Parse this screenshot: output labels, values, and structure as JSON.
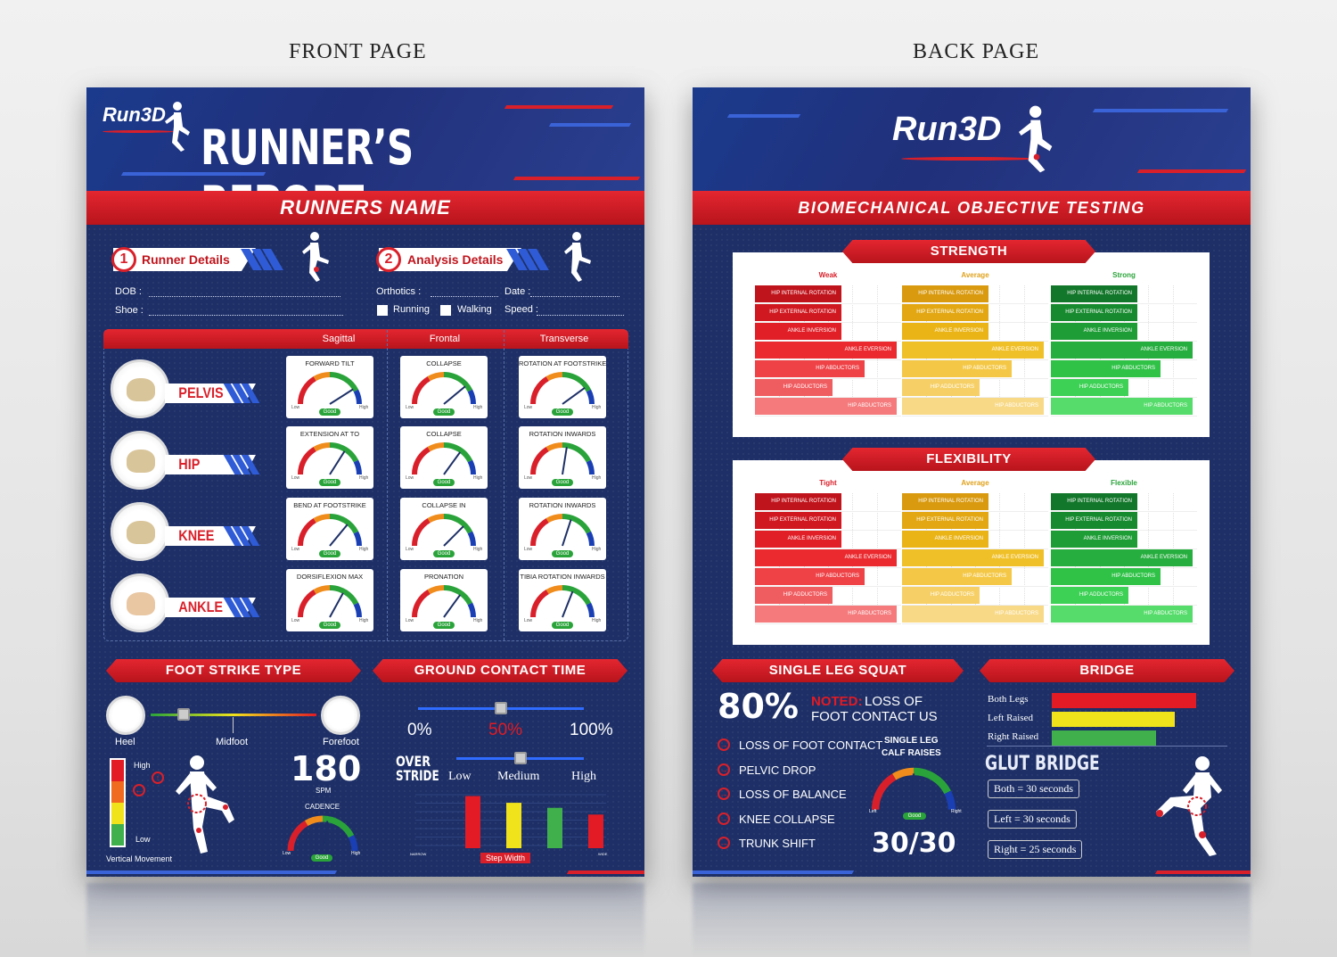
{
  "captions": {
    "front": "FRONT PAGE",
    "back": "BACK PAGE"
  },
  "front": {
    "logo": "Run3D",
    "title": "RUNNER’S REPORT",
    "banner": "RUNNERS NAME",
    "runner_details": {
      "num": "1",
      "label": "Runner Details",
      "dob": "DOB :",
      "shoe": "Shoe :"
    },
    "analysis_details": {
      "num": "2",
      "label": "Analysis Details",
      "orthotics": "Orthotics :",
      "date": "Date :",
      "running": "Running",
      "walking": "Walking",
      "speed": "Speed :"
    },
    "planes": [
      "Sagittal",
      "Frontal",
      "Transverse"
    ],
    "body_parts": [
      "PELVIS",
      "HIP",
      "KNEE",
      "ANKLE"
    ],
    "gauges": [
      [
        {
          "title": "FORWARD TILT",
          "value": 0.82
        },
        {
          "title": "COLLAPSE",
          "value": 0.78
        },
        {
          "title": "ROTATION AT FOOTSTRIKE",
          "value": 0.8
        }
      ],
      [
        {
          "title": "EXTENSION AT TO",
          "value": 0.68
        },
        {
          "title": "COLLAPSE",
          "value": 0.7
        },
        {
          "title": "ROTATION INWARDS",
          "value": 0.55
        }
      ],
      [
        {
          "title": "BEND AT FOOTSTRIKE",
          "value": 0.72
        },
        {
          "title": "COLLAPSE IN",
          "value": 0.75
        },
        {
          "title": "ROTATION INWARDS",
          "value": 0.6
        }
      ],
      [
        {
          "title": "DORSIFLEXION MAX",
          "value": 0.66
        },
        {
          "title": "PRONATION",
          "value": 0.7
        },
        {
          "title": "TIBIA ROTATION INWARDS",
          "value": 0.62
        }
      ]
    ],
    "gauge_labels": {
      "low": "Low",
      "high": "High",
      "good": "Good"
    },
    "foot_strike": {
      "title": "FOOT STRIKE TYPE",
      "heel": "Heel",
      "midfoot": "Midfoot",
      "forefoot": "Forefoot",
      "value": 0.2
    },
    "vertical": {
      "high": "High",
      "low": "Low",
      "label": "Vertical Movement"
    },
    "cadence": {
      "value": "180",
      "unit": "SPM",
      "label": "CADENCE",
      "low": "Low",
      "high": "High",
      "good": "Good",
      "gauge": 0.55
    },
    "gct": {
      "title": "GROUND CONTACT TIME",
      "p0": "0%",
      "p50": "50%",
      "p100": "100%",
      "value": 0.5
    },
    "overstride": {
      "line1": "OVER",
      "line2": "STRIDE",
      "low": "Low",
      "medium": "Medium",
      "high": "High",
      "value": 0.5,
      "narrow": "NARROW",
      "wide": "WIDE",
      "step_width": "Step Width"
    },
    "overstride_chart": {
      "type": "bar",
      "values": [
        6.2,
        5.4,
        4.8,
        4.0,
        2.5
      ],
      "colors": [
        "#e21b24",
        "#f0e31c",
        "#3fb04b",
        "#e21b24",
        "#e21b24"
      ]
    }
  },
  "back": {
    "logo": "Run3D",
    "banner": "BIOMECHANICAL OBJECTIVE TESTING",
    "strength": {
      "title": "STRENGTH",
      "columns": [
        {
          "name": "Weak",
          "color": "#d9202a",
          "shades": [
            "#c0141c",
            "#d01820",
            "#e01f27",
            "#ea2a2f",
            "#ee4247",
            "#f05d61",
            "#f47a7c"
          ]
        },
        {
          "name": "Average",
          "color": "#e0a21c",
          "shades": [
            "#d99a10",
            "#e2a712",
            "#eab417",
            "#f0c028",
            "#f4c846",
            "#f6d067",
            "#f8d986"
          ]
        },
        {
          "name": "Strong",
          "color": "#2aa43a",
          "shades": [
            "#12772a",
            "#178a2f",
            "#1e9d36",
            "#26ae3e",
            "#2fc247",
            "#3dd155",
            "#55dc6a"
          ]
        }
      ],
      "labels": [
        "HIP INTERNAL ROTATION",
        "HIP EXTERNAL ROTATION",
        "ANKLE INVERSION",
        "ANKLE EVERSION",
        "HIP ABDUCTORS",
        "HIP ADDUCTORS",
        "HIP ABDUCTORS"
      ],
      "fractions": [
        0.59,
        0.59,
        0.59,
        0.97,
        0.75,
        0.53,
        0.97
      ]
    },
    "flexibility": {
      "title": "FLEXIBILITY",
      "columns": [
        {
          "name": "Tight",
          "color": "#d9202a",
          "shades": [
            "#c0141c",
            "#d01820",
            "#e01f27",
            "#ea2a2f",
            "#ee4247",
            "#f05d61",
            "#f47a7c"
          ]
        },
        {
          "name": "Average",
          "color": "#e0a21c",
          "shades": [
            "#d99a10",
            "#e2a712",
            "#eab417",
            "#f0c028",
            "#f4c846",
            "#f6d067",
            "#f8d986"
          ]
        },
        {
          "name": "Flexible",
          "color": "#2aa43a",
          "shades": [
            "#12772a",
            "#178a2f",
            "#1e9d36",
            "#26ae3e",
            "#2fc247",
            "#3dd155",
            "#55dc6a"
          ]
        }
      ],
      "labels": [
        "HIP INTERNAL ROTATION",
        "HIP EXTERNAL ROTATION",
        "ANKLE INVERSION",
        "ANKLE EVERSION",
        "HIP ABDUCTORS",
        "HIP ADDUCTORS",
        "HIP ABDUCTORS"
      ],
      "fractions": [
        0.59,
        0.59,
        0.59,
        0.97,
        0.75,
        0.53,
        0.97
      ]
    },
    "squat": {
      "title": "SINGLE LEG SQUAT",
      "percent": "80%",
      "noted": "NOTED:",
      "noted_text1": "LOSS OF",
      "noted_text2": "FOOT CONTACT US",
      "items": [
        "LOSS OF FOOT CONTACT",
        "PELVIC DROP",
        "LOSS OF BALANCE",
        "KNEE COLLAPSE",
        "TRUNK SHIFT"
      ],
      "calf_title1": "SINGLE LEG",
      "calf_title2": "CALF RAISES",
      "calf_left": "Left",
      "calf_right": "Right",
      "calf_good": "Good",
      "calf_value": "30/30",
      "calf_gauge": 0.5
    },
    "bridge": {
      "title": "BRIDGE",
      "rows": [
        {
          "label": "Both Legs",
          "value": 1.0,
          "color": "#e21b24"
        },
        {
          "label": "Left Raised",
          "value": 0.85,
          "color": "#f0e31c"
        },
        {
          "label": "Right Raised",
          "value": 0.72,
          "color": "#3fb04b"
        }
      ],
      "glut_title": "GLUT BRIDGE",
      "both": "Both = 30 seconds",
      "left": "Left = 30 seconds",
      "right": "Right = 25 seconds"
    }
  }
}
